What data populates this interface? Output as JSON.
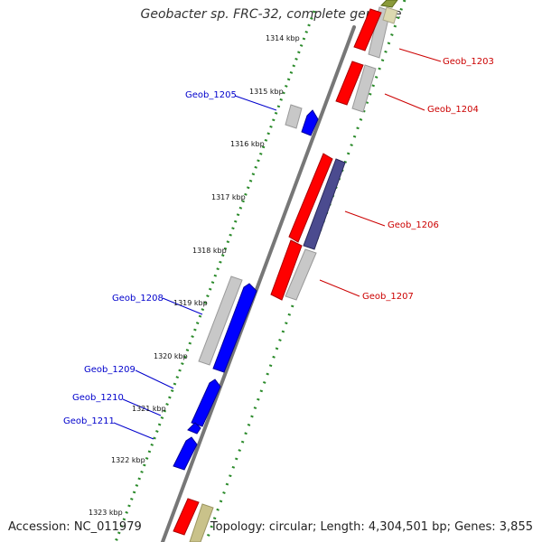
{
  "title": "Geobacter sp. FRC-32, complete genome",
  "accession": "Accession: NC_011979",
  "summary": "Topology: circular; Length: 4,304,501 bp; Genes: 3,855",
  "colors": {
    "forward_gene": "#ff0000",
    "reverse_gene": "#0000ff",
    "cds_grey": "#bfbfbf",
    "special": "#4b4b8f",
    "olive": "#8a9a3a",
    "khaki": "#c9c28a",
    "backbone": "#777777",
    "tick": "#2a8a2a",
    "label_forward": "#cc0000",
    "label_reverse": "#0000cc"
  },
  "kbp_labels": [
    "1314 kbp",
    "1315 kbp",
    "1316 kbp",
    "1317 kbp",
    "1318 kbp",
    "1319 kbp",
    "1320 kbp",
    "1321 kbp",
    "1322 kbp",
    "1323 kbp"
  ],
  "genes_forward": [
    "Geob_1203",
    "Geob_1204",
    "Geob_1206",
    "Geob_1207"
  ],
  "genes_reverse": [
    "Geob_1205",
    "Geob_1208",
    "Geob_1209",
    "Geob_1210",
    "Geob_1211"
  ]
}
